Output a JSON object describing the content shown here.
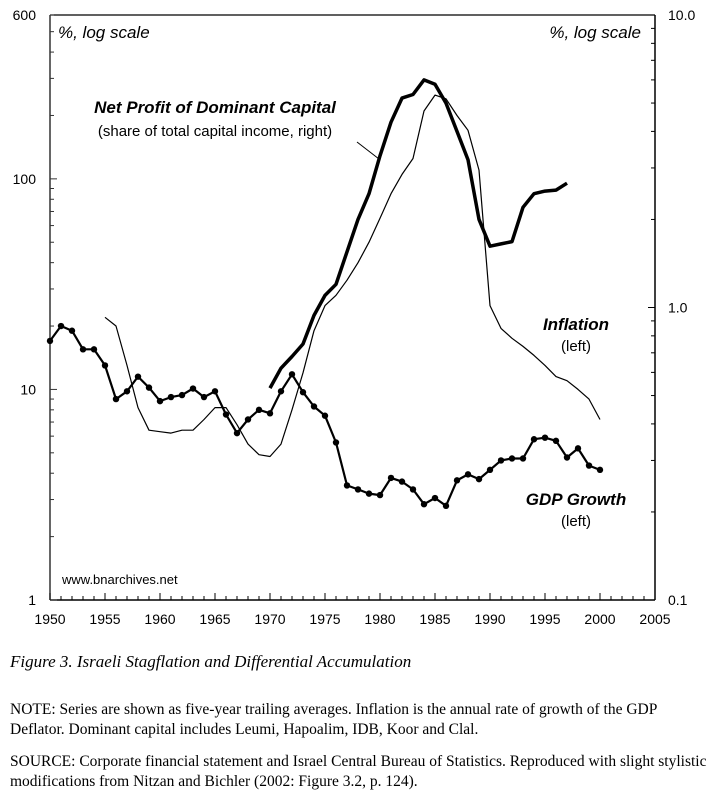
{
  "chart_data": {
    "type": "line",
    "title": "Figure 3. Israeli Stagflation and Differential Accumulation",
    "xlabel": "",
    "x_ticks": [
      "1950",
      "1955",
      "1960",
      "1965",
      "1970",
      "1975",
      "1980",
      "1985",
      "1990",
      "1995",
      "2000",
      "2005"
    ],
    "xlim": [
      1950,
      2005
    ],
    "left_axis": {
      "label": "%, log scale",
      "scale": "log",
      "range": [
        1,
        600
      ],
      "tick_labels": [
        "1",
        "10",
        "100",
        "600"
      ]
    },
    "right_axis": {
      "label": "%, log scale",
      "scale": "log",
      "range": [
        0.1,
        10.0
      ],
      "tick_labels": [
        "0.1",
        "1.0",
        "10.0"
      ]
    },
    "grid": false,
    "watermark": "www.bnarchives.net",
    "series": [
      {
        "name": "Net Profit of Dominant Capital",
        "subtitle": "(share of total capital income, right)",
        "axis": "right",
        "style": "thick",
        "x": [
          1970,
          1971,
          1972,
          1973,
          1974,
          1975,
          1976,
          1977,
          1978,
          1979,
          1980,
          1981,
          1982,
          1983,
          1984,
          1985,
          1986,
          1987,
          1988,
          1989,
          1990,
          1991,
          1992,
          1993,
          1994,
          1995,
          1996,
          1997
        ],
        "values": [
          0.53,
          0.62,
          0.68,
          0.75,
          0.94,
          1.1,
          1.2,
          1.55,
          2.0,
          2.45,
          3.3,
          4.3,
          5.2,
          5.35,
          6.0,
          5.8,
          5.0,
          4.0,
          3.2,
          2.0,
          1.62,
          1.65,
          1.68,
          2.2,
          2.45,
          2.5,
          2.52,
          2.66
        ]
      },
      {
        "name": "Inflation",
        "subtitle": "(left)",
        "axis": "left",
        "style": "thin",
        "x": [
          1955,
          1956,
          1957,
          1958,
          1959,
          1960,
          1961,
          1962,
          1963,
          1964,
          1965,
          1966,
          1967,
          1968,
          1969,
          1970,
          1971,
          1972,
          1973,
          1974,
          1975,
          1976,
          1977,
          1978,
          1979,
          1980,
          1981,
          1982,
          1983,
          1984,
          1985,
          1986,
          1987,
          1988,
          1989,
          1990,
          1991,
          1992,
          1993,
          1994,
          1995,
          1996,
          1997,
          1998,
          1999,
          2000
        ],
        "values": [
          22,
          20,
          13,
          8.2,
          6.4,
          6.3,
          6.2,
          6.4,
          6.4,
          7.2,
          8.2,
          8.2,
          6.8,
          5.5,
          4.9,
          4.8,
          5.5,
          8.0,
          12,
          19,
          25,
          28,
          33,
          40,
          50,
          65,
          85,
          105,
          125,
          210,
          250,
          240,
          200,
          170,
          110,
          25,
          19.5,
          17.5,
          16,
          14.5,
          13,
          11.5,
          11,
          10,
          9,
          7.2
        ]
      },
      {
        "name": "GDP Growth",
        "subtitle": "(left)",
        "axis": "left",
        "style": "markers",
        "x": [
          1950,
          1951,
          1952,
          1953,
          1954,
          1955,
          1956,
          1957,
          1958,
          1959,
          1960,
          1961,
          1962,
          1963,
          1964,
          1965,
          1966,
          1967,
          1968,
          1969,
          1970,
          1971,
          1972,
          1973,
          1974,
          1975,
          1976,
          1977,
          1978,
          1979,
          1980,
          1981,
          1982,
          1983,
          1984,
          1985,
          1986,
          1987,
          1988,
          1989,
          1990,
          1991,
          1992,
          1993,
          1994,
          1995,
          1996,
          1997,
          1998,
          1999,
          2000
        ],
        "values": [
          17,
          20,
          19,
          15.5,
          15.5,
          13,
          9,
          9.8,
          11.5,
          10.2,
          8.8,
          9.2,
          9.4,
          10.1,
          9.2,
          9.8,
          7.6,
          6.2,
          7.2,
          8.0,
          7.7,
          9.8,
          11.8,
          9.7,
          8.3,
          7.5,
          5.6,
          3.5,
          3.35,
          3.2,
          3.15,
          3.8,
          3.65,
          3.35,
          2.85,
          3.05,
          2.8,
          3.7,
          3.95,
          3.75,
          4.15,
          4.6,
          4.7,
          4.7,
          5.8,
          5.9,
          5.7,
          4.75,
          5.25,
          4.35,
          4.15
        ]
      }
    ]
  },
  "caption": {
    "figure_title": "Figure 3. Israeli Stagflation and Differential Accumulation",
    "note": "NOTE: Series are shown as five-year trailing averages. Inflation is the annual rate of growth of the GDP Deflator. Dominant capital includes Leumi, Hapoalim, IDB, Koor and Clal.",
    "source": "SOURCE: Corporate financial statement and Israel Central Bureau of Statistics. Reproduced with slight stylistic modifications from Nitzan and Bichler (2002: Figure 3.2, p. 124)."
  }
}
